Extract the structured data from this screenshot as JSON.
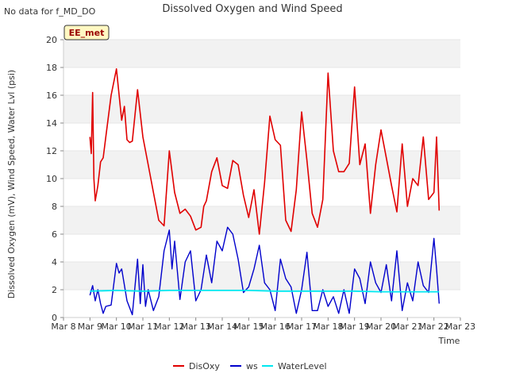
{
  "note": "No data for f_MD_DO",
  "station_badge": "EE_met",
  "chart_data": {
    "type": "line",
    "title": "Dissolved Oxygen and Wind Speed",
    "xlabel": "Time",
    "ylabel": "Dissolved Oxygen (mV), Wind Speed, Water Lvl (psi)",
    "x_ticks": [
      "Mar 8",
      "Mar 9",
      "Mar 10",
      "Mar 11",
      "Mar 12",
      "Mar 13",
      "Mar 14",
      "Mar 15",
      "Mar 16",
      "Mar 17",
      "Mar 18",
      "Mar 19",
      "Mar 20",
      "Mar 21",
      "Mar 22",
      "Mar 23"
    ],
    "xlim": [
      "Mar 8",
      "Mar 23"
    ],
    "ylim": [
      0,
      20
    ],
    "y_ticks": [
      0,
      2,
      4,
      6,
      8,
      10,
      12,
      14,
      16,
      18,
      20
    ],
    "grid": "horizontal bands",
    "legend": "bottom-center",
    "series": [
      {
        "name": "DisOxy",
        "color": "#e00000",
        "x": [
          9.0,
          9.05,
          9.1,
          9.15,
          9.2,
          9.3,
          9.4,
          9.5,
          9.6,
          9.8,
          10.0,
          10.2,
          10.3,
          10.4,
          10.5,
          10.6,
          10.8,
          11.0,
          11.2,
          11.4,
          11.6,
          11.8,
          12.0,
          12.2,
          12.4,
          12.6,
          12.8,
          13.0,
          13.2,
          13.3,
          13.4,
          13.6,
          13.8,
          14.0,
          14.2,
          14.4,
          14.6,
          14.8,
          15.0,
          15.2,
          15.4,
          15.6,
          15.8,
          16.0,
          16.2,
          16.4,
          16.6,
          16.8,
          17.0,
          17.2,
          17.4,
          17.6,
          17.8,
          18.0,
          18.2,
          18.4,
          18.6,
          18.8,
          19.0,
          19.2,
          19.4,
          19.6,
          19.8,
          20.0,
          20.2,
          20.4,
          20.6,
          20.8,
          21.0,
          21.2,
          21.4,
          21.6,
          21.8,
          22.0,
          22.1,
          22.2
        ],
        "values": [
          13.0,
          11.8,
          16.2,
          10.0,
          8.4,
          9.5,
          11.2,
          11.5,
          13.0,
          16.0,
          17.9,
          14.2,
          15.2,
          12.8,
          12.6,
          12.7,
          16.4,
          13.0,
          11.0,
          9.0,
          7.0,
          6.6,
          12.0,
          9.0,
          7.5,
          7.8,
          7.3,
          6.3,
          6.5,
          8.0,
          8.4,
          10.5,
          11.5,
          9.5,
          9.3,
          11.3,
          11.0,
          8.8,
          7.2,
          9.2,
          6.0,
          9.7,
          14.5,
          12.8,
          12.4,
          7.0,
          6.2,
          9.2,
          14.8,
          11.3,
          7.5,
          6.5,
          8.5,
          17.6,
          12.0,
          10.5,
          10.5,
          11.1,
          16.6,
          11.0,
          12.5,
          7.5,
          11.0,
          13.5,
          11.5,
          9.5,
          7.6,
          12.5,
          8.0,
          10.0,
          9.5,
          13.0,
          8.5,
          9.0,
          13.0,
          7.7
        ]
      },
      {
        "name": "ws",
        "color": "#0000cc",
        "x": [
          9.0,
          9.1,
          9.2,
          9.3,
          9.4,
          9.5,
          9.6,
          9.8,
          10.0,
          10.1,
          10.2,
          10.4,
          10.6,
          10.8,
          10.9,
          11.0,
          11.1,
          11.2,
          11.4,
          11.6,
          11.8,
          12.0,
          12.1,
          12.2,
          12.4,
          12.6,
          12.8,
          13.0,
          13.2,
          13.4,
          13.6,
          13.8,
          14.0,
          14.2,
          14.4,
          14.6,
          14.8,
          15.0,
          15.2,
          15.4,
          15.6,
          15.8,
          16.0,
          16.2,
          16.4,
          16.6,
          16.8,
          17.0,
          17.2,
          17.4,
          17.6,
          17.8,
          18.0,
          18.2,
          18.4,
          18.6,
          18.8,
          19.0,
          19.2,
          19.4,
          19.6,
          19.8,
          20.0,
          20.2,
          20.4,
          20.6,
          20.8,
          21.0,
          21.2,
          21.4,
          21.6,
          21.8,
          22.0,
          22.1,
          22.2
        ],
        "values": [
          1.6,
          2.3,
          1.2,
          2.0,
          1.0,
          0.3,
          0.8,
          0.9,
          3.9,
          3.2,
          3.5,
          1.2,
          0.2,
          4.2,
          1.0,
          3.8,
          0.8,
          2.0,
          0.5,
          1.5,
          4.8,
          6.3,
          3.5,
          5.5,
          1.3,
          4.0,
          4.8,
          1.2,
          2.0,
          4.5,
          2.5,
          5.5,
          4.8,
          6.5,
          6.0,
          4.2,
          1.8,
          2.2,
          3.5,
          5.2,
          2.5,
          2.0,
          0.5,
          4.2,
          2.8,
          2.2,
          0.3,
          2.0,
          4.7,
          0.5,
          0.5,
          2.0,
          0.8,
          1.5,
          0.3,
          2.0,
          0.3,
          3.5,
          2.8,
          1.0,
          4.0,
          2.5,
          1.8,
          3.8,
          1.2,
          4.8,
          0.5,
          2.5,
          1.2,
          4.0,
          2.3,
          1.8,
          5.7,
          3.5,
          1.0
        ]
      },
      {
        "name": "WaterLevel",
        "color": "#00e8f0",
        "x": [
          9.0,
          10.0,
          11.0,
          12.0,
          13.0,
          14.0,
          15.0,
          16.0,
          17.0,
          18.0,
          19.0,
          20.0,
          21.0,
          22.0,
          22.2
        ],
        "values": [
          1.9,
          1.95,
          1.9,
          1.95,
          1.95,
          1.95,
          1.95,
          1.9,
          1.9,
          1.9,
          1.9,
          1.85,
          1.85,
          1.85,
          1.85
        ]
      }
    ]
  }
}
